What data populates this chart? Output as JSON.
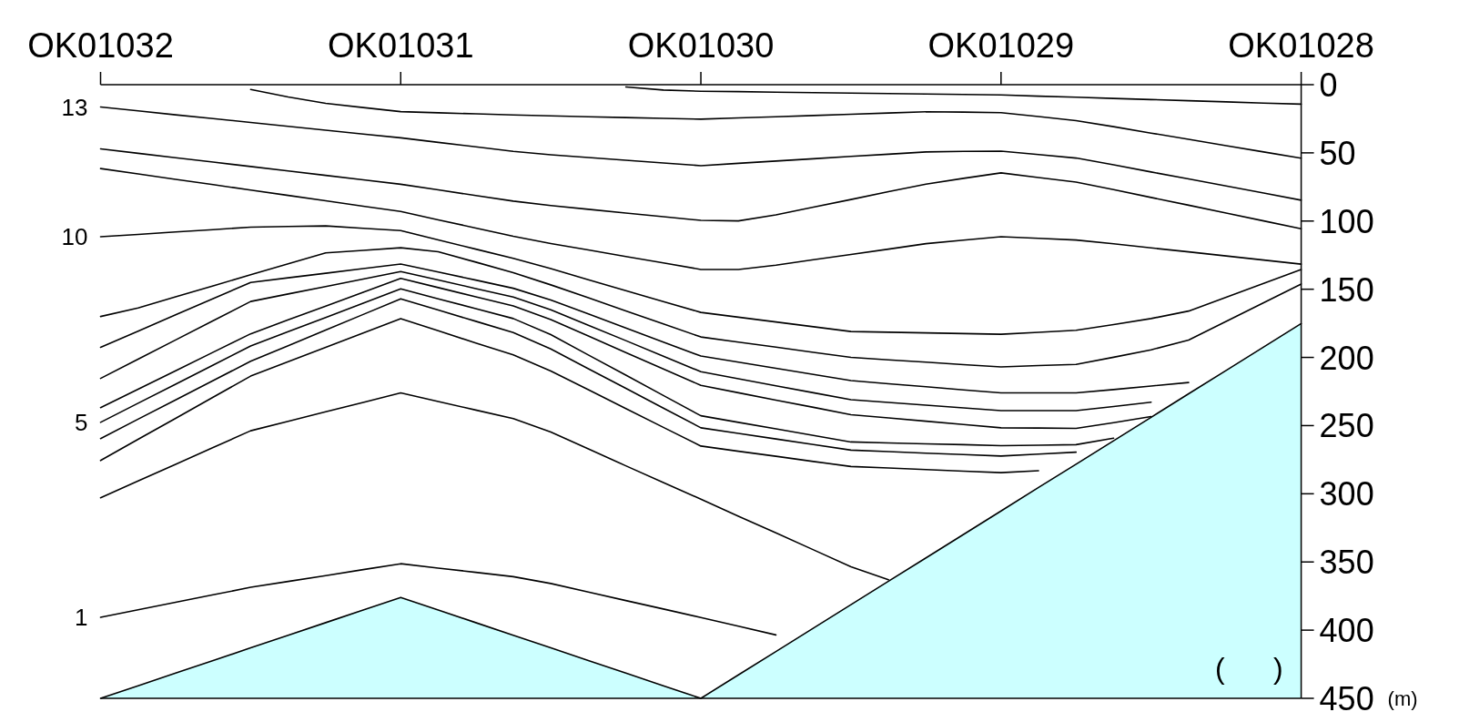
{
  "chart_data": {
    "type": "line",
    "categories": [
      "OK01032",
      null,
      null,
      null,
      null,
      null,
      null,
      null,
      "OK01031",
      null,
      null,
      null,
      null,
      null,
      null,
      null,
      "OK01030",
      null,
      null,
      null,
      null,
      null,
      null,
      null,
      "OK01029",
      null,
      null,
      null,
      null,
      null,
      null,
      null,
      "OK01028"
    ],
    "ylim": [
      450,
      0
    ],
    "yticks": [
      0,
      50,
      100,
      150,
      200,
      250,
      300,
      350,
      400,
      450
    ],
    "ylabel": "(m)",
    "annotations": [
      "(      )"
    ],
    "series": [
      {
        "color": "#000000",
        "values": [
          null,
          null,
          null,
          null,
          null,
          null,
          null,
          null,
          null,
          null,
          null,
          null,
          null,
          null,
          1.7,
          3.9,
          4.8,
          5.1,
          5.5,
          5.8,
          6.2,
          6.5,
          6.8,
          7.2,
          7.5,
          8.4,
          9.2,
          10.1,
          10.9,
          11.8,
          12.6,
          13.5,
          14.3
        ]
      },
      {
        "color": "#000000",
        "values": [
          null,
          null,
          null,
          null,
          3.5,
          9,
          13.7,
          16.8,
          19.8,
          20.6,
          21.4,
          22.2,
          22.9,
          23.5,
          24.1,
          24.7,
          25.3,
          24.4,
          23.5,
          22.6,
          21.7,
          20.8,
          19.9,
          20.1,
          20.5,
          23.4,
          26.4,
          30.8,
          35.5,
          40.1,
          44.7,
          49.3,
          53.9
        ]
      },
      {
        "name": "13",
        "color": "#000000",
        "values": [
          16.4,
          19.2,
          22.1,
          24.9,
          27.7,
          30.5,
          33.4,
          36.2,
          39,
          42.3,
          45.6,
          48.9,
          51.4,
          53.4,
          55.4,
          57.4,
          59.4,
          57.7,
          56,
          54.3,
          52.6,
          51,
          49.3,
          48.9,
          48.7,
          51.2,
          53.8,
          58.8,
          64,
          69.1,
          74.3,
          79.5,
          84.7
        ]
      },
      {
        "color": "#000000",
        "values": [
          47.1,
          50.3,
          53.6,
          56.8,
          60,
          63.3,
          66.5,
          69.8,
          73,
          77.1,
          81.3,
          85.4,
          88.6,
          91.4,
          94.1,
          96.8,
          99.5,
          99.9,
          95.5,
          89.8,
          84.2,
          78.5,
          72.9,
          68.7,
          64.7,
          68.1,
          71.4,
          77,
          82.7,
          88.4,
          94.2,
          99.9,
          105.6
        ]
      },
      {
        "color": "#000000",
        "values": [
          61.5,
          65.4,
          69.4,
          73.3,
          77.3,
          81.2,
          85.1,
          89.1,
          93,
          99.1,
          105.1,
          111.2,
          116.5,
          121.2,
          126,
          130.7,
          135.5,
          135.5,
          132.4,
          128.4,
          124.5,
          120.6,
          116.6,
          114,
          111.5,
          112.7,
          113.9,
          116.7,
          119.7,
          122.6,
          125.6,
          128.6,
          131.6
        ]
      },
      {
        "name": "10",
        "color": "#000000",
        "values": [
          111.5,
          109.8,
          108,
          106.3,
          104.5,
          104,
          103.6,
          105.3,
          107,
          113.8,
          120.6,
          127.3,
          134.9,
          143,
          151,
          159,
          167,
          170.5,
          174,
          177.5,
          181,
          181.5,
          182,
          182.5,
          183,
          181.6,
          180.1,
          175.9,
          171.5,
          166,
          155.9,
          145.7,
          135.6
        ]
      },
      {
        "color": "#000000",
        "values": [
          170,
          163.7,
          155.6,
          147.5,
          139.4,
          131.4,
          123.3,
          121.5,
          119.6,
          122.5,
          130.1,
          137.9,
          146.8,
          156.3,
          165.9,
          175.4,
          185,
          188.8,
          192.5,
          196.3,
          200,
          201.8,
          203.5,
          205.3,
          207,
          206,
          205.1,
          199.9,
          194.4,
          187.3,
          173.6,
          159.9,
          146.2
        ]
      },
      {
        "color": "#000000",
        "values": [
          192.6,
          180.7,
          168.8,
          156.9,
          145,
          141.6,
          138.3,
          134.9,
          131.5,
          137.4,
          143.3,
          149.3,
          157.9,
          168.1,
          178.4,
          188.7,
          199,
          203.5,
          208,
          212.5,
          217,
          219.3,
          221.5,
          223.8,
          226,
          226,
          226,
          223.6,
          221,
          218.4,
          null,
          null,
          null
        ]
      },
      {
        "color": "#000000",
        "values": [
          215.4,
          201.3,
          187.2,
          173.1,
          159,
          153.5,
          148,
          142.5,
          137,
          143.2,
          149.5,
          155.7,
          165.1,
          176.4,
          187.7,
          199.1,
          210.5,
          215.6,
          220.8,
          225.9,
          231,
          233,
          235,
          237,
          239,
          239,
          239,
          236,
          232.8,
          null,
          null,
          null,
          null
        ]
      },
      {
        "color": "#000000",
        "values": [
          236.8,
          223.3,
          209.8,
          196.2,
          182.7,
          172.5,
          162.4,
          152.2,
          142,
          148.8,
          155.6,
          162.3,
          172.3,
          184.3,
          196.4,
          208.5,
          220.5,
          225.9,
          231.3,
          236.6,
          242,
          244.4,
          246.8,
          249.2,
          251.6,
          251.8,
          252,
          247.9,
          243.4,
          null,
          null,
          null,
          null
        ]
      },
      {
        "name": "5",
        "color": "#000000",
        "values": [
          247.6,
          233.6,
          219.6,
          205.6,
          191.6,
          181.1,
          170.7,
          160.2,
          149.7,
          157,
          164.2,
          171.5,
          183.3,
          198.2,
          213,
          227.9,
          242.8,
          247.6,
          252.4,
          257.2,
          262,
          262.7,
          263.4,
          264,
          264.7,
          264.4,
          264,
          259.2,
          null,
          null,
          null,
          null,
          null
        ]
      },
      {
        "color": "#000000",
        "values": [
          259.5,
          245.3,
          231.2,
          217,
          202.8,
          191.4,
          179.9,
          168.5,
          157,
          165.3,
          173.5,
          181.8,
          193.8,
          208.3,
          222.7,
          237.2,
          251.6,
          255.7,
          259.8,
          263.9,
          268,
          269.1,
          270.2,
          271.2,
          272.3,
          270.9,
          269.5,
          null,
          null,
          null,
          null,
          null,
          null
        ]
      },
      {
        "color": "#000000",
        "values": [
          275.6,
          260.1,
          244.7,
          229.2,
          213.7,
          203.2,
          192.7,
          182.1,
          171.6,
          180.5,
          189.4,
          198.2,
          210,
          223.7,
          237.5,
          251.3,
          265,
          268.8,
          272.5,
          276.3,
          280,
          281.1,
          282.3,
          283.4,
          284.5,
          283.1,
          null,
          null,
          null,
          null,
          null,
          null,
          null
        ]
      },
      {
        "color": "#000000",
        "values": [
          302.9,
          290.6,
          278.4,
          266.1,
          253.8,
          246.9,
          239.9,
          233,
          226,
          232.3,
          238.6,
          244.8,
          254.7,
          267.1,
          279.5,
          291.7,
          304,
          316.4,
          328.7,
          341.1,
          353.5,
          363,
          null,
          null,
          null,
          null,
          null,
          null,
          null,
          null,
          null,
          null,
          null
        ]
      },
      {
        "name": "1",
        "color": "#000000",
        "values": [
          390.6,
          385.1,
          379.6,
          374.1,
          368.6,
          364.3,
          360,
          355.6,
          351.3,
          354.5,
          357.6,
          360.8,
          365.8,
          372,
          378.3,
          384.5,
          390.7,
          397.1,
          403.5,
          null,
          null,
          null,
          null,
          null,
          null,
          null,
          null,
          null,
          null,
          null,
          null,
          null,
          null
        ]
      },
      {
        "color": "#000000",
        "values": [
          450,
          440.8,
          431.5,
          422.3,
          413,
          403.8,
          394.5,
          385.3,
          376,
          385.3,
          394.5,
          403.8,
          413,
          422.3,
          431.5,
          440.8,
          450,
          432.8,
          415.7,
          398.5,
          381.3,
          364.1,
          347,
          329.8,
          312.6,
          295.4,
          278.3,
          261.1,
          243.9,
          226.7,
          209.6,
          192.4,
          175.2
        ]
      }
    ]
  }
}
